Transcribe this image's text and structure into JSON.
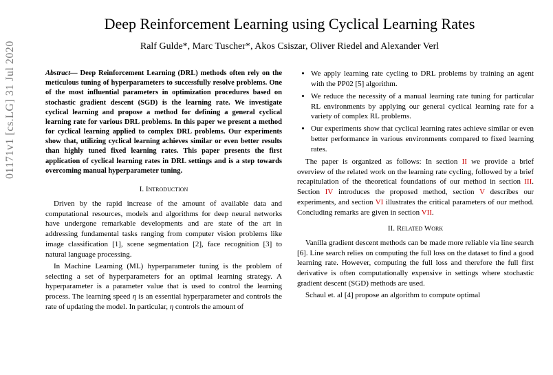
{
  "arxiv_label": "01171v1  [cs.LG]  31 Jul 2020",
  "title": "Deep Reinforcement Learning using Cyclical Learning Rates",
  "authors": "Ralf Gulde*, Marc Tuscher*, Akos Csiszar, Oliver Riedel and Alexander Verl",
  "abstract_label": "Abstract",
  "abstract_body": "— Deep Reinforcement Learning (DRL) methods often rely on the meticulous tuning of hyperparameters to successfully resolve problems. One of the most influential parameters in optimization procedures based on stochastic gradient descent (SGD) is the learning rate. We investigate cyclical learning and propose a method for defining a general cyclical learning rate for various DRL problems. In this paper we present a method for cyclical learning applied to complex DRL problems. Our experiments show that, utilizing cyclical learning achieves similar or even better results than highly tuned fixed learning rates. This paper presents the first application of cyclical learning rates in DRL settings and is a step towards overcoming manual hyperparameter tuning.",
  "section1_head": "I. Introduction",
  "intro_p1": "Driven by the rapid increase of the amount of available data and computational resources, models and algorithms for deep neural networks have undergone remarkable developments and are state of the art in addressing fundamental tasks ranging from computer vision problems like image classification [1], scene segmentation [2], face recognition [3] to natural language processing.",
  "intro_p2a": "In Machine Learning (ML) hyperparameter tuning is the problem of selecting a set of hyperparameters for an optimal learning strategy. A hyperparameter is a parameter value that is used to control the learning process. The learning speed ",
  "intro_eta1": "η",
  "intro_p2b": " is an essential hyperparameter and controls the rate of updating the model. In particular, ",
  "intro_eta2": "η",
  "intro_p2c": " controls the amount of",
  "bullet1": "We apply learning rate cycling to DRL problems by training an agent with the PP02 [5] algorithm.",
  "bullet2": "We reduce the necessity of a manual learning rate tuning for particular RL environments by applying our general cyclical learning rate for a variety of complex RL problems.",
  "bullet3": "Our experiments show that cyclical learning rates achieve similar or even better performance in various environments compared to fixed learning rates.",
  "org_p1a": "The paper is organized as follows: In section ",
  "org_ref1": "II",
  "org_p1b": " we provide a brief overview of the related work on the learning rate cycling, followed by a brief recapitulation of the theoretical foundations of our method in section ",
  "org_ref2": "III",
  "org_p1c": ". Section ",
  "org_ref3": "IV",
  "org_p1d": " introduces the proposed method, section ",
  "org_ref4": "V",
  "org_p1e": " describes our experiments, and section ",
  "org_ref5": "VI",
  "org_p1f": " illustrates the critical parameters of our method. Concluding remarks are given in section ",
  "org_ref6": "VII",
  "org_p1g": ".",
  "section2_head": "II. Related Work",
  "rw_p1": "Vanilla gradient descent methods can be made more reliable via line search [6]. Line search relies on computing the full loss on the dataset to find a good learning rate. However, computing the full loss and therefore the full first derivative is often computationally expensive in settings where stochastic gradient descent (SGD) methods are used.",
  "rw_p2": "Schaul et. al [4] propose an algorithm to compute optimal"
}
